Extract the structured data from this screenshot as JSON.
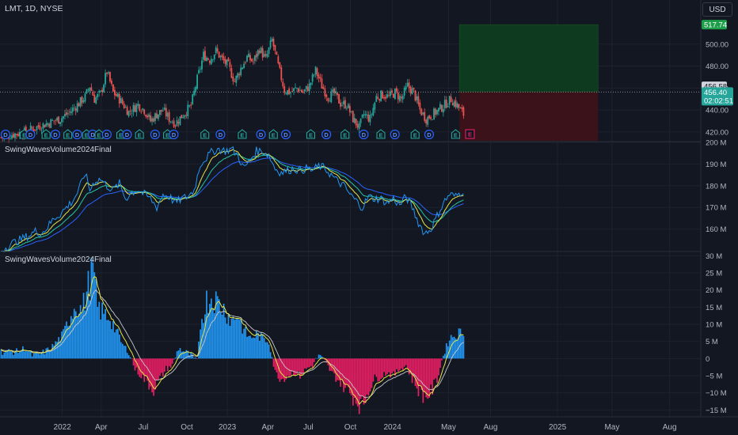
{
  "header": {
    "symbol_line": "LMT, 1D, NYSE",
    "currency_button": "USD"
  },
  "colors": {
    "background": "#131722",
    "grid": "#1e222d",
    "up": "#26a69a",
    "down": "#ef5350",
    "volume_line": "#2196f3",
    "ma_yellow": "#e5e54b",
    "ma_teal": "#26c6a6",
    "ma_blue": "#2962ff",
    "histogram_pos": "#2196f3",
    "histogram_neg": "#e91e63",
    "target_zone": "#0e3a1f",
    "stop_zone": "#3b1219"
  },
  "badges": {
    "dividend_label": "D",
    "earnings_label": "E"
  },
  "chart_data": [
    {
      "type": "candlestick",
      "title": "LMT, 1D, NYSE",
      "ylim": [
        412,
        520
      ],
      "y_ticks": [
        "500.00",
        "480.00",
        "460.00",
        "440.00",
        "420.00"
      ],
      "y_tick_values": [
        500,
        480,
        460,
        440,
        420
      ],
      "current_price": 456.4,
      "current_price_label": "456.40",
      "countdown_label": "02:02:51",
      "marker_price": 456.58,
      "marker_price_label": "456.58",
      "target_price": 517.74,
      "target_price_label": "517.74",
      "close_series": [
        [
          0,
          415
        ],
        [
          8,
          418
        ],
        [
          16,
          420
        ],
        [
          22,
          424
        ],
        [
          30,
          428
        ],
        [
          38,
          432
        ],
        [
          44,
          438
        ],
        [
          50,
          446
        ],
        [
          54,
          452
        ],
        [
          57,
          462
        ],
        [
          60,
          450
        ],
        [
          64,
          455
        ],
        [
          68,
          475
        ],
        [
          72,
          456
        ],
        [
          76,
          450
        ],
        [
          82,
          438
        ],
        [
          88,
          445
        ],
        [
          92,
          440
        ],
        [
          96,
          430
        ],
        [
          100,
          436
        ],
        [
          104,
          440
        ],
        [
          108,
          432
        ],
        [
          112,
          428
        ],
        [
          117,
          436
        ],
        [
          122,
          444
        ],
        [
          126,
          468
        ],
        [
          130,
          490
        ],
        [
          134,
          486
        ],
        [
          138,
          494
        ],
        [
          142,
          486
        ],
        [
          146,
          480
        ],
        [
          150,
          466
        ],
        [
          154,
          478
        ],
        [
          158,
          488
        ],
        [
          162,
          484
        ],
        [
          166,
          496
        ],
        [
          170,
          486
        ],
        [
          174,
          504
        ],
        [
          178,
          480
        ],
        [
          182,
          458
        ],
        [
          186,
          456
        ],
        [
          190,
          460
        ],
        [
          194,
          456
        ],
        [
          198,
          462
        ],
        [
          202,
          476
        ],
        [
          206,
          462
        ],
        [
          210,
          452
        ],
        [
          214,
          455
        ],
        [
          218,
          446
        ],
        [
          222,
          445
        ],
        [
          226,
          432
        ],
        [
          230,
          424
        ],
        [
          233,
          436
        ],
        [
          237,
          432
        ],
        [
          241,
          452
        ],
        [
          245,
          454
        ],
        [
          249,
          452
        ],
        [
          253,
          456
        ],
        [
          257,
          450
        ],
        [
          261,
          462
        ],
        [
          265,
          456
        ],
        [
          269,
          440
        ],
        [
          273,
          432
        ],
        [
          277,
          436
        ],
        [
          281,
          440
        ],
        [
          285,
          445
        ],
        [
          289,
          450
        ],
        [
          293,
          444
        ],
        [
          297,
          436
        ]
      ],
      "badge_row": [
        [
          0,
          "D"
        ],
        [
          12,
          "E"
        ],
        [
          16,
          "D"
        ],
        [
          26,
          "E"
        ],
        [
          32,
          "D"
        ],
        [
          40,
          "E"
        ],
        [
          46,
          "D"
        ],
        [
          52,
          "E"
        ],
        [
          56,
          "D"
        ],
        [
          60,
          "E"
        ],
        [
          65,
          "D"
        ],
        [
          74,
          "E"
        ],
        [
          78,
          "D"
        ],
        [
          86,
          "E"
        ],
        [
          96,
          "D"
        ],
        [
          104,
          "E"
        ],
        [
          108,
          "D"
        ],
        [
          128,
          "E"
        ],
        [
          138,
          "D"
        ],
        [
          152,
          "E"
        ],
        [
          164,
          "D"
        ],
        [
          172,
          "E"
        ],
        [
          180,
          "D"
        ],
        [
          196,
          "E"
        ],
        [
          206,
          "D"
        ],
        [
          218,
          "E"
        ],
        [
          230,
          "D"
        ],
        [
          241,
          "E"
        ],
        [
          250,
          "D"
        ],
        [
          263,
          "E"
        ],
        [
          272,
          "D"
        ],
        [
          289,
          "E"
        ]
      ]
    },
    {
      "type": "line",
      "title": "SwingWavesVolume2024Final",
      "ylim": [
        150,
        200
      ],
      "y_ticks": [
        "200 M",
        "190 M",
        "180 M",
        "170 M",
        "160 M"
      ],
      "y_tick_values": [
        200,
        190,
        180,
        170,
        160
      ],
      "series": [
        {
          "values": [
            [
              0,
              150
            ],
            [
              6,
              153
            ],
            [
              12,
              155
            ],
            [
              18,
              157
            ],
            [
              22,
              159
            ],
            [
              26,
              158
            ],
            [
              30,
              161
            ],
            [
              34,
              165
            ],
            [
              38,
              167
            ],
            [
              42,
              170
            ],
            [
              46,
              173
            ],
            [
              50,
              178
            ],
            [
              54,
              186
            ],
            [
              57,
              178
            ],
            [
              60,
              182
            ],
            [
              64,
              183
            ],
            [
              68,
              180
            ],
            [
              72,
              178
            ],
            [
              76,
              181
            ],
            [
              80,
              174
            ],
            [
              84,
              177
            ],
            [
              88,
              178
            ],
            [
              92,
              176
            ],
            [
              96,
              174
            ],
            [
              100,
              170
            ],
            [
              104,
              176
            ],
            [
              108,
              175
            ],
            [
              112,
              172
            ],
            [
              116,
              174
            ],
            [
              120,
              175
            ],
            [
              124,
              178
            ],
            [
              128,
              190
            ],
            [
              132,
              193
            ],
            [
              136,
              196
            ],
            [
              140,
              197
            ],
            [
              144,
              196
            ],
            [
              148,
              197
            ],
            [
              152,
              194
            ],
            [
              156,
              188
            ],
            [
              160,
              192
            ],
            [
              164,
              196
            ],
            [
              168,
              196
            ],
            [
              172,
              194
            ],
            [
              176,
              188
            ],
            [
              180,
              186
            ],
            [
              184,
              187
            ],
            [
              188,
              188
            ],
            [
              192,
              187
            ],
            [
              196,
              188
            ],
            [
              200,
              187
            ],
            [
              204,
              189
            ],
            [
              208,
              188
            ],
            [
              212,
              185
            ],
            [
              216,
              182
            ],
            [
              220,
              180
            ],
            [
              224,
              176
            ],
            [
              228,
              173
            ],
            [
              232,
              170
            ],
            [
              236,
              175
            ],
            [
              240,
              174
            ],
            [
              244,
              174
            ],
            [
              248,
              172
            ],
            [
              252,
              174
            ],
            [
              256,
              171
            ],
            [
              260,
              175
            ],
            [
              264,
              170
            ],
            [
              268,
              163
            ],
            [
              272,
              158
            ],
            [
              276,
              160
            ],
            [
              280,
              166
            ],
            [
              284,
              172
            ],
            [
              288,
              176
            ],
            [
              292,
              175
            ],
            [
              297,
              178
            ]
          ]
        }
      ]
    },
    {
      "type": "bar",
      "title": "SwingWavesVolume2024Final",
      "ylim": [
        -17,
        31
      ],
      "y_ticks": [
        "30 M",
        "25 M",
        "20 M",
        "15 M",
        "10 M",
        "5 M",
        "0",
        "−5 M",
        "−10 M",
        "−15 M"
      ],
      "y_tick_values": [
        30,
        25,
        20,
        15,
        10,
        5,
        0,
        -5,
        -10,
        -15
      ],
      "series": [
        {
          "values": [
            [
              0,
              2
            ],
            [
              10,
              2
            ],
            [
              15,
              3
            ],
            [
              20,
              1
            ],
            [
              24,
              1
            ],
            [
              28,
              2
            ],
            [
              32,
              3
            ],
            [
              36,
              5
            ],
            [
              40,
              7
            ],
            [
              44,
              12
            ],
            [
              48,
              16
            ],
            [
              52,
              14
            ],
            [
              56,
              21
            ],
            [
              59,
              26
            ],
            [
              62,
              15
            ],
            [
              66,
              13
            ],
            [
              70,
              12
            ],
            [
              74,
              8
            ],
            [
              78,
              4
            ],
            [
              82,
              2
            ],
            [
              86,
              -3
            ],
            [
              90,
              -5
            ],
            [
              94,
              -7
            ],
            [
              98,
              -9
            ],
            [
              102,
              -6
            ],
            [
              106,
              -3
            ],
            [
              110,
              -2
            ],
            [
              114,
              3
            ],
            [
              118,
              2
            ],
            [
              122,
              1
            ],
            [
              126,
              -1
            ],
            [
              128,
              10
            ],
            [
              132,
              17
            ],
            [
              136,
              18
            ],
            [
              140,
              16
            ],
            [
              144,
              14
            ],
            [
              148,
              11
            ],
            [
              152,
              13
            ],
            [
              156,
              8
            ],
            [
              160,
              6
            ],
            [
              164,
              7
            ],
            [
              168,
              6
            ],
            [
              172,
              5
            ],
            [
              176,
              -4
            ],
            [
              180,
              -6
            ],
            [
              184,
              -5
            ],
            [
              188,
              -4
            ],
            [
              192,
              -5
            ],
            [
              196,
              -3
            ],
            [
              200,
              -2
            ],
            [
              204,
              1
            ],
            [
              208,
              -1
            ],
            [
              212,
              -4
            ],
            [
              216,
              -6
            ],
            [
              220,
              -8
            ],
            [
              224,
              -10
            ],
            [
              228,
              -12
            ],
            [
              232,
              -14
            ],
            [
              236,
              -9
            ],
            [
              240,
              -6
            ],
            [
              244,
              -5
            ],
            [
              248,
              -4
            ],
            [
              252,
              -5
            ],
            [
              256,
              -3
            ],
            [
              260,
              -2
            ],
            [
              264,
              -6
            ],
            [
              268,
              -9
            ],
            [
              272,
              -11
            ],
            [
              276,
              -10
            ],
            [
              280,
              -6
            ],
            [
              284,
              1
            ],
            [
              288,
              6
            ],
            [
              292,
              7
            ],
            [
              297,
              8
            ]
          ]
        }
      ]
    }
  ],
  "x_axis": {
    "labels": [
      {
        "text": "2022",
        "bar": 40
      },
      {
        "text": "Apr",
        "bar": 65
      },
      {
        "text": "Jul",
        "bar": 92
      },
      {
        "text": "Oct",
        "bar": 120
      },
      {
        "text": "2023",
        "bar": 146
      },
      {
        "text": "Apr",
        "bar": 172
      },
      {
        "text": "Jul",
        "bar": 198
      },
      {
        "text": "Oct",
        "bar": 225
      },
      {
        "text": "2024",
        "bar": 252
      },
      {
        "text": "May",
        "bar": 288
      },
      {
        "text": "Aug",
        "bar": 315
      },
      {
        "text": "2025",
        "bar": 358
      },
      {
        "text": "May",
        "bar": 393
      },
      {
        "text": "Aug",
        "bar": 430
      }
    ],
    "bar_range": [
      0,
      450
    ]
  }
}
